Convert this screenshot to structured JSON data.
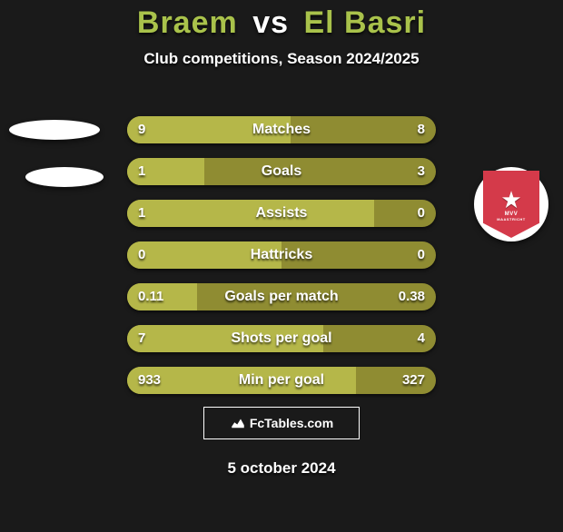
{
  "title_left": "Braem",
  "title_vs": "vs",
  "title_right": "El Basri",
  "title_color_left": "#a9c24b",
  "title_color_vs": "#ffffff",
  "title_color_right": "#a9c24b",
  "subtitle": "Club competitions, Season 2024/2025",
  "brand": "FcTables.com",
  "date": "5 october 2024",
  "bar_left_color": "#b5b749",
  "bar_right_color": "#8f8c32",
  "rows": [
    {
      "label": "Matches",
      "left": "9",
      "right": "8",
      "left_pct": 52.9
    },
    {
      "label": "Goals",
      "left": "1",
      "right": "3",
      "left_pct": 25.0
    },
    {
      "label": "Assists",
      "left": "1",
      "right": "0",
      "left_pct": 80.0
    },
    {
      "label": "Hattricks",
      "left": "0",
      "right": "0",
      "left_pct": 50.0
    },
    {
      "label": "Goals per match",
      "left": "0.11",
      "right": "0.38",
      "left_pct": 22.5
    },
    {
      "label": "Shots per goal",
      "left": "7",
      "right": "4",
      "left_pct": 63.6
    },
    {
      "label": "Min per goal",
      "left": "933",
      "right": "327",
      "left_pct": 74.0
    }
  ],
  "badge_text": "MVV",
  "badge_sub": "MAASTRICHT",
  "badge_bg": "#d43a4a"
}
